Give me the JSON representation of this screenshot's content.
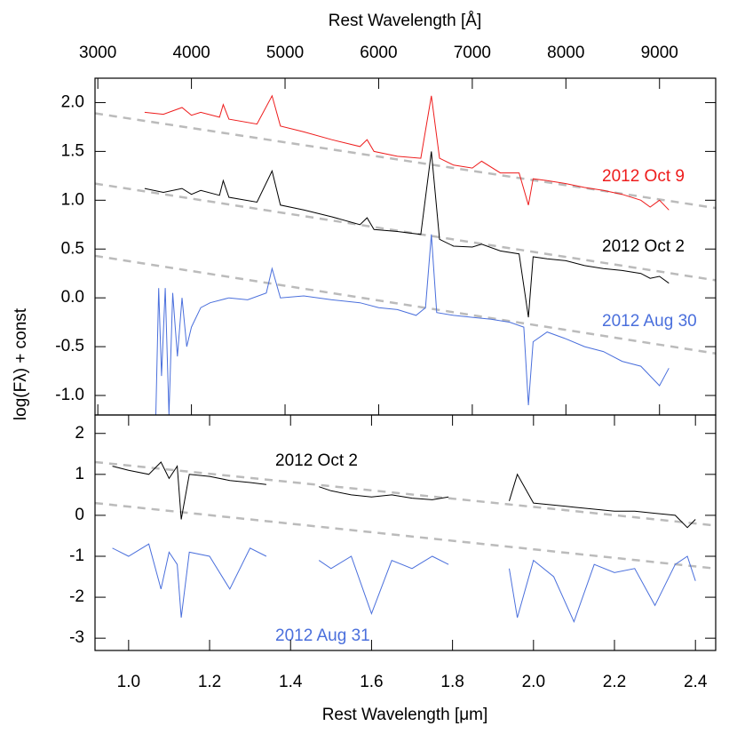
{
  "chart_data": [
    {
      "type": "line",
      "x_label": "Rest Wavelength [Å]",
      "y_label": "log(Fλ) + const",
      "xlim": [
        2970,
        9600
      ],
      "ylim": [
        -1.2,
        2.25
      ],
      "xticks": [
        3000,
        4000,
        5000,
        6000,
        7000,
        8000,
        9000
      ],
      "yticks": [
        {
          "value": 2,
          "label": "2.0"
        },
        {
          "value": 1.5,
          "label": "1.5"
        },
        {
          "value": 1,
          "label": "1.0"
        },
        {
          "value": 0.5,
          "label": "0.5"
        },
        {
          "value": 0,
          "label": "0.0"
        },
        {
          "value": -0.5,
          "label": "-0.5"
        },
        {
          "value": -1,
          "label": "-1.0"
        }
      ],
      "series": [
        {
          "name": "2012 Oct 9",
          "color": "#ee1c1c",
          "x": [
            3500,
            3700,
            3900,
            4000,
            4100,
            4300,
            4340,
            4400,
            4700,
            4861,
            4950,
            5200,
            5500,
            5800,
            5876,
            5950,
            6200,
            6450,
            6563,
            6650,
            6800,
            7000,
            7100,
            7300,
            7500,
            7600,
            7650,
            7800,
            8000,
            8200,
            8400,
            8600,
            8800,
            8900,
            9000,
            9100
          ],
          "values": [
            1.9,
            1.88,
            1.95,
            1.87,
            1.9,
            1.85,
            1.98,
            1.83,
            1.78,
            2.07,
            1.76,
            1.7,
            1.62,
            1.55,
            1.62,
            1.5,
            1.45,
            1.43,
            2.07,
            1.43,
            1.36,
            1.33,
            1.4,
            1.28,
            1.28,
            0.95,
            1.22,
            1.2,
            1.17,
            1.13,
            1.1,
            1.06,
            1.0,
            0.93,
            1.0,
            0.9
          ]
        },
        {
          "name": "2012 Oct 2",
          "color": "#000000",
          "x": [
            3500,
            3700,
            3900,
            4000,
            4100,
            4300,
            4340,
            4400,
            4700,
            4861,
            4950,
            5200,
            5500,
            5800,
            5876,
            5950,
            6200,
            6450,
            6563,
            6650,
            6800,
            7000,
            7100,
            7300,
            7500,
            7600,
            7650,
            7800,
            8000,
            8200,
            8400,
            8600,
            8800,
            8900,
            9000,
            9100
          ],
          "values": [
            1.12,
            1.08,
            1.12,
            1.06,
            1.1,
            1.05,
            1.2,
            1.03,
            0.98,
            1.3,
            0.95,
            0.9,
            0.83,
            0.75,
            0.82,
            0.7,
            0.68,
            0.65,
            1.5,
            0.6,
            0.53,
            0.52,
            0.55,
            0.48,
            0.45,
            -0.2,
            0.42,
            0.4,
            0.38,
            0.33,
            0.3,
            0.28,
            0.25,
            0.2,
            0.22,
            0.15
          ]
        },
        {
          "name": "2012 Aug 30",
          "color": "#4a6fdc",
          "x": [
            3620,
            3650,
            3680,
            3720,
            3760,
            3800,
            3850,
            3900,
            3950,
            4000,
            4100,
            4200,
            4400,
            4600,
            4800,
            4861,
            4950,
            5200,
            5500,
            5800,
            6000,
            6200,
            6400,
            6500,
            6563,
            6620,
            6800,
            7000,
            7200,
            7400,
            7550,
            7600,
            7650,
            7800,
            8000,
            8200,
            8400,
            8600,
            8800,
            9000,
            9100
          ],
          "values": [
            -1.2,
            0.1,
            -0.8,
            0.1,
            -1.2,
            0.05,
            -0.6,
            0.0,
            -0.5,
            -0.3,
            -0.1,
            -0.05,
            0.0,
            -0.02,
            0.05,
            0.3,
            0.0,
            0.02,
            -0.02,
            -0.05,
            -0.1,
            -0.12,
            -0.18,
            -0.1,
            0.65,
            -0.15,
            -0.18,
            -0.2,
            -0.22,
            -0.25,
            -0.3,
            -1.1,
            -0.45,
            -0.35,
            -0.42,
            -0.5,
            -0.55,
            -0.65,
            -0.7,
            -0.9,
            -0.72
          ]
        }
      ],
      "fits": [
        {
          "color": "#bbbbbb",
          "x": [
            2970,
            9600
          ],
          "values": [
            1.89,
            0.92
          ]
        },
        {
          "color": "#bbbbbb",
          "x": [
            2970,
            9600
          ],
          "values": [
            1.17,
            0.18
          ]
        },
        {
          "color": "#bbbbbb",
          "x": [
            2970,
            9600
          ],
          "values": [
            0.43,
            -0.57
          ]
        }
      ]
    },
    {
      "type": "line",
      "x_label": "Rest Wavelength [μm]",
      "xlim": [
        0.917,
        2.45
      ],
      "ylim": [
        -3.3,
        2.45
      ],
      "xticks": [
        {
          "value": 1,
          "label": "1.0"
        },
        1.2,
        1.4,
        1.6,
        1.8,
        {
          "value": 2,
          "label": "2.0"
        },
        2.2,
        2.4
      ],
      "yticks": [
        2,
        1,
        0,
        -1,
        -2,
        -3
      ],
      "series": [
        {
          "name": "2012 Oct 2",
          "color": "#000000",
          "x": [
            0.96,
            1.0,
            1.05,
            1.08,
            1.1,
            1.12,
            1.13,
            1.15,
            1.2,
            1.25,
            1.3,
            1.34,
            1.4,
            1.47,
            1.5,
            1.55,
            1.6,
            1.65,
            1.7,
            1.75,
            1.79,
            1.87,
            1.94,
            1.96,
            2.0,
            2.05,
            2.1,
            2.15,
            2.2,
            2.25,
            2.3,
            2.35,
            2.38,
            2.4
          ],
          "values": [
            1.2,
            1.1,
            1.0,
            1.3,
            0.9,
            1.2,
            -0.1,
            1.0,
            0.95,
            0.85,
            0.8,
            0.75,
            null,
            0.7,
            0.6,
            0.5,
            0.45,
            0.5,
            0.42,
            0.38,
            0.45,
            null,
            0.35,
            1.0,
            0.3,
            0.25,
            0.2,
            0.15,
            0.1,
            0.1,
            0.05,
            0.0,
            -0.3,
            -0.1
          ]
        },
        {
          "name": "2012 Aug 31",
          "color": "#4a6fdc",
          "x": [
            0.96,
            1.0,
            1.05,
            1.08,
            1.1,
            1.12,
            1.13,
            1.15,
            1.2,
            1.25,
            1.3,
            1.34,
            1.4,
            1.47,
            1.5,
            1.55,
            1.6,
            1.65,
            1.7,
            1.75,
            1.79,
            1.87,
            1.94,
            1.96,
            2.0,
            2.05,
            2.1,
            2.15,
            2.2,
            2.25,
            2.3,
            2.35,
            2.38,
            2.4
          ],
          "values": [
            -0.8,
            -1.0,
            -0.7,
            -1.8,
            -0.9,
            -1.2,
            -2.5,
            -0.9,
            -1.0,
            -1.8,
            -0.8,
            -1.0,
            null,
            -1.1,
            -1.3,
            -1.0,
            -2.4,
            -1.1,
            -1.3,
            -1.0,
            -1.2,
            null,
            -1.3,
            -2.5,
            -1.1,
            -1.5,
            -2.6,
            -1.2,
            -1.4,
            -1.3,
            -2.2,
            -1.2,
            -1.0,
            -1.6
          ]
        }
      ],
      "fits": [
        {
          "color": "#bbbbbb",
          "x": [
            0.917,
            2.45
          ],
          "values": [
            1.3,
            -0.25
          ]
        },
        {
          "color": "#bbbbbb",
          "x": [
            0.917,
            2.45
          ],
          "values": [
            0.3,
            -1.3
          ]
        }
      ]
    }
  ]
}
